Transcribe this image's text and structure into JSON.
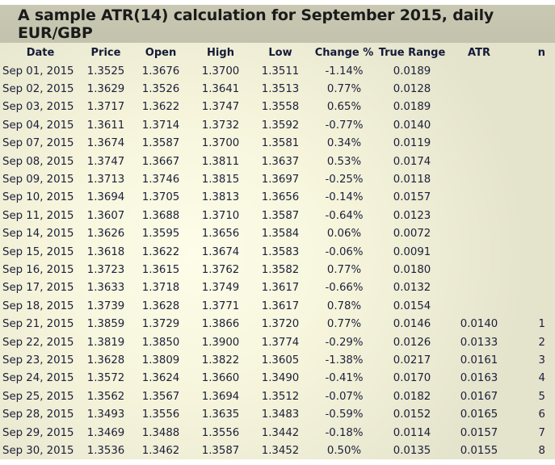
{
  "title": "A sample ATR(14) calculation for September 2015, daily EUR/GBP",
  "colors": {
    "title_bar": "#c6c6b0",
    "background": "#f8f7df",
    "text": "#1c1f3a"
  },
  "columns": [
    "Date",
    "Price",
    "Open",
    "High",
    "Low",
    "Change %",
    "True Range",
    "ATR",
    "n"
  ],
  "rows": [
    [
      "Sep 01, 2015",
      "1.3525",
      "1.3676",
      "1.3700",
      "1.3511",
      "-1.14%",
      "0.0189",
      "",
      ""
    ],
    [
      "Sep 02, 2015",
      "1.3629",
      "1.3526",
      "1.3641",
      "1.3513",
      "0.77%",
      "0.0128",
      "",
      ""
    ],
    [
      "Sep 03, 2015",
      "1.3717",
      "1.3622",
      "1.3747",
      "1.3558",
      "0.65%",
      "0.0189",
      "",
      ""
    ],
    [
      "Sep 04, 2015",
      "1.3611",
      "1.3714",
      "1.3732",
      "1.3592",
      "-0.77%",
      "0.0140",
      "",
      ""
    ],
    [
      "Sep 07, 2015",
      "1.3674",
      "1.3587",
      "1.3700",
      "1.3581",
      "0.34%",
      "0.0119",
      "",
      ""
    ],
    [
      "Sep 08, 2015",
      "1.3747",
      "1.3667",
      "1.3811",
      "1.3637",
      "0.53%",
      "0.0174",
      "",
      ""
    ],
    [
      "Sep 09, 2015",
      "1.3713",
      "1.3746",
      "1.3815",
      "1.3697",
      "-0.25%",
      "0.0118",
      "",
      ""
    ],
    [
      "Sep 10, 2015",
      "1.3694",
      "1.3705",
      "1.3813",
      "1.3656",
      "-0.14%",
      "0.0157",
      "",
      ""
    ],
    [
      "Sep 11, 2015",
      "1.3607",
      "1.3688",
      "1.3710",
      "1.3587",
      "-0.64%",
      "0.0123",
      "",
      ""
    ],
    [
      "Sep 14, 2015",
      "1.3626",
      "1.3595",
      "1.3656",
      "1.3584",
      "0.06%",
      "0.0072",
      "",
      ""
    ],
    [
      "Sep 15, 2015",
      "1.3618",
      "1.3622",
      "1.3674",
      "1.3583",
      "-0.06%",
      "0.0091",
      "",
      ""
    ],
    [
      "Sep 16, 2015",
      "1.3723",
      "1.3615",
      "1.3762",
      "1.3582",
      "0.77%",
      "0.0180",
      "",
      ""
    ],
    [
      "Sep 17, 2015",
      "1.3633",
      "1.3718",
      "1.3749",
      "1.3617",
      "-0.66%",
      "0.0132",
      "",
      ""
    ],
    [
      "Sep 18, 2015",
      "1.3739",
      "1.3628",
      "1.3771",
      "1.3617",
      "0.78%",
      "0.0154",
      "",
      ""
    ],
    [
      "Sep 21, 2015",
      "1.3859",
      "1.3729",
      "1.3866",
      "1.3720",
      "0.77%",
      "0.0146",
      "0.0140",
      "1"
    ],
    [
      "Sep 22, 2015",
      "1.3819",
      "1.3850",
      "1.3900",
      "1.3774",
      "-0.29%",
      "0.0126",
      "0.0133",
      "2"
    ],
    [
      "Sep 23, 2015",
      "1.3628",
      "1.3809",
      "1.3822",
      "1.3605",
      "-1.38%",
      "0.0217",
      "0.0161",
      "3"
    ],
    [
      "Sep 24, 2015",
      "1.3572",
      "1.3624",
      "1.3660",
      "1.3490",
      "-0.41%",
      "0.0170",
      "0.0163",
      "4"
    ],
    [
      "Sep 25, 2015",
      "1.3562",
      "1.3567",
      "1.3694",
      "1.3512",
      "-0.07%",
      "0.0182",
      "0.0167",
      "5"
    ],
    [
      "Sep 28, 2015",
      "1.3493",
      "1.3556",
      "1.3635",
      "1.3483",
      "-0.59%",
      "0.0152",
      "0.0165",
      "6"
    ],
    [
      "Sep 29, 2015",
      "1.3469",
      "1.3488",
      "1.3556",
      "1.3442",
      "-0.18%",
      "0.0114",
      "0.0157",
      "7"
    ],
    [
      "Sep 30, 2015",
      "1.3536",
      "1.3462",
      "1.3587",
      "1.3452",
      "0.50%",
      "0.0135",
      "0.0155",
      "8"
    ]
  ]
}
